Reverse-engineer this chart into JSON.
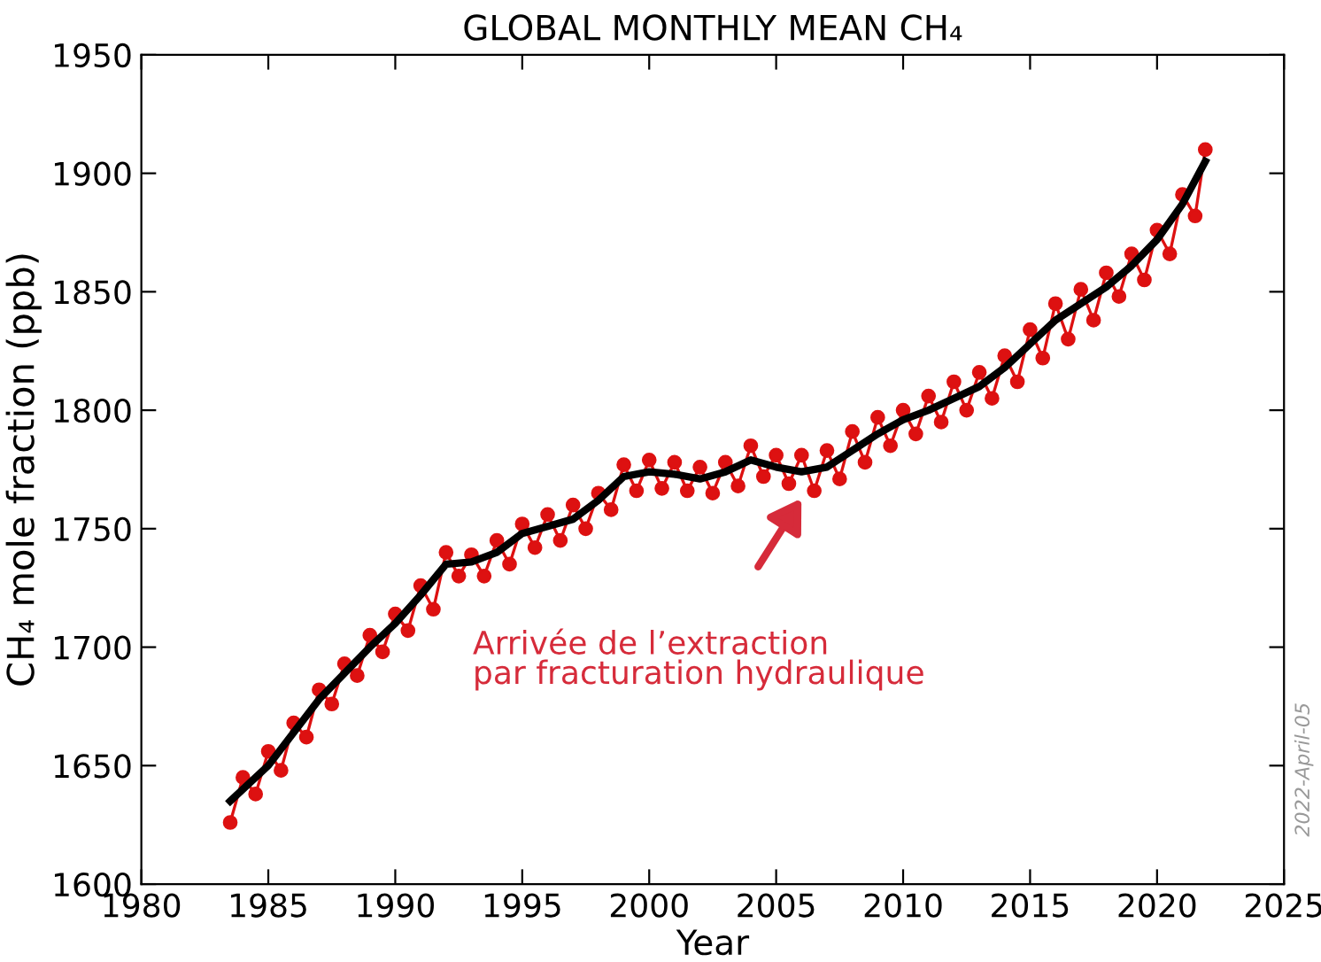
{
  "chart_data": {
    "type": "line",
    "title": "GLOBAL MONTHLY MEAN CH₄",
    "xlabel": "Year",
    "ylabel": "CH₄ mole fraction (ppb)",
    "xlim": [
      1980,
      2025
    ],
    "xticks": [
      1980,
      1985,
      1990,
      1995,
      2000,
      2005,
      2010,
      2015,
      2020,
      2025
    ],
    "ylim": [
      1600,
      1950
    ],
    "yticks": [
      1600,
      1650,
      1700,
      1750,
      1800,
      1850,
      1900,
      1950
    ],
    "grid": false,
    "legend": false,
    "series": [
      {
        "color": "#dd1111",
        "marker": "circle",
        "line_style": "solid",
        "x": [
          1983.5,
          1984.0,
          1984.5,
          1985.0,
          1985.5,
          1986.0,
          1986.5,
          1987.0,
          1987.5,
          1988.0,
          1988.5,
          1989.0,
          1989.5,
          1990.0,
          1990.5,
          1991.0,
          1991.5,
          1992.0,
          1992.5,
          1993.0,
          1993.5,
          1994.0,
          1994.5,
          1995.0,
          1995.5,
          1996.0,
          1996.5,
          1997.0,
          1997.5,
          1998.0,
          1998.5,
          1999.0,
          1999.5,
          2000.0,
          2000.5,
          2001.0,
          2001.5,
          2002.0,
          2002.5,
          2003.0,
          2003.5,
          2004.0,
          2004.5,
          2005.0,
          2005.5,
          2006.0,
          2006.5,
          2007.0,
          2007.5,
          2008.0,
          2008.5,
          2009.0,
          2009.5,
          2010.0,
          2010.5,
          2011.0,
          2011.5,
          2012.0,
          2012.5,
          2013.0,
          2013.5,
          2014.0,
          2014.5,
          2015.0,
          2015.5,
          2016.0,
          2016.5,
          2017.0,
          2017.5,
          2018.0,
          2018.5,
          2019.0,
          2019.5,
          2020.0,
          2020.5,
          2021.0,
          2021.5,
          2021.9
        ],
        "values": [
          1626,
          1645,
          1638,
          1656,
          1648,
          1668,
          1662,
          1682,
          1676,
          1693,
          1688,
          1705,
          1698,
          1714,
          1707,
          1726,
          1716,
          1740,
          1730,
          1739,
          1730,
          1745,
          1735,
          1752,
          1742,
          1756,
          1745,
          1760,
          1750,
          1765,
          1758,
          1777,
          1766,
          1779,
          1767,
          1778,
          1766,
          1776,
          1765,
          1778,
          1768,
          1785,
          1772,
          1781,
          1769,
          1781,
          1766,
          1783,
          1771,
          1791,
          1778,
          1797,
          1785,
          1800,
          1790,
          1806,
          1795,
          1812,
          1800,
          1816,
          1805,
          1823,
          1812,
          1834,
          1822,
          1845,
          1830,
          1851,
          1838,
          1858,
          1848,
          1866,
          1855,
          1876,
          1866,
          1891,
          1882,
          1910
        ]
      },
      {
        "color": "#000000",
        "marker": "none",
        "line_style": "solid",
        "x": [
          1983.5,
          1985,
          1987,
          1989,
          1990,
          1991,
          1992,
          1993,
          1994,
          1995,
          1996,
          1997,
          1998,
          1999,
          2000,
          2001,
          2002,
          2003,
          2004,
          2005,
          2006,
          2007,
          2008,
          2009,
          2010,
          2011,
          2012,
          2013,
          2014,
          2015,
          2016,
          2017,
          2018,
          2019,
          2020,
          2021,
          2021.9
        ],
        "values": [
          1635,
          1650,
          1678,
          1700,
          1710,
          1722,
          1735,
          1736,
          1740,
          1748,
          1751,
          1754,
          1762,
          1772,
          1774,
          1773,
          1771,
          1774,
          1779,
          1776,
          1774,
          1776,
          1783,
          1790,
          1796,
          1800,
          1805,
          1810,
          1818,
          1828,
          1838,
          1845,
          1852,
          1861,
          1872,
          1887,
          1905
        ]
      }
    ],
    "annotations": [
      "Arrivée de l’extraction\npar fracturation hydraulique",
      "2022-April-05"
    ]
  }
}
